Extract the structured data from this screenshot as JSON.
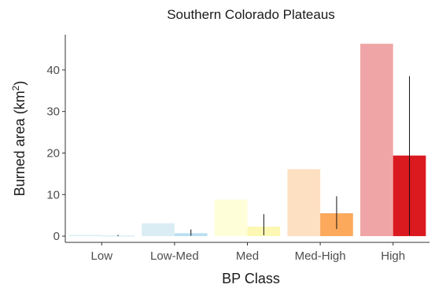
{
  "chart_data": {
    "type": "bar",
    "title": "Southern Colorado Plateaus",
    "xlabel": "BP Class",
    "ylabel": "Burned area (km",
    "ylabel_sup": "2",
    "ylabel_close": ")",
    "categories": [
      "Low",
      "Low-Med",
      "Med",
      "Med-High",
      "High"
    ],
    "yticks": [
      0,
      10,
      20,
      30,
      40
    ],
    "ylim": [
      -1.5,
      48.5
    ],
    "grid": false,
    "series": [
      {
        "values": [
          0.3,
          3.1,
          8.8,
          16.1,
          46.3
        ],
        "colors": [
          "#daedf4",
          "#daedf4",
          "#fefed8",
          "#fde0c1",
          "#efa5a5"
        ]
      },
      {
        "values": [
          0.1,
          0.7,
          2.3,
          5.5,
          19.4
        ],
        "colors": [
          "#b9dff0",
          "#b9dff0",
          "#fcf8b4",
          "#fda95b",
          "#db1a20"
        ],
        "error_low": [
          0.0,
          0.1,
          0.2,
          1.7,
          0.2
        ],
        "error_high": [
          0.3,
          1.6,
          5.3,
          9.6,
          38.5
        ]
      }
    ]
  }
}
